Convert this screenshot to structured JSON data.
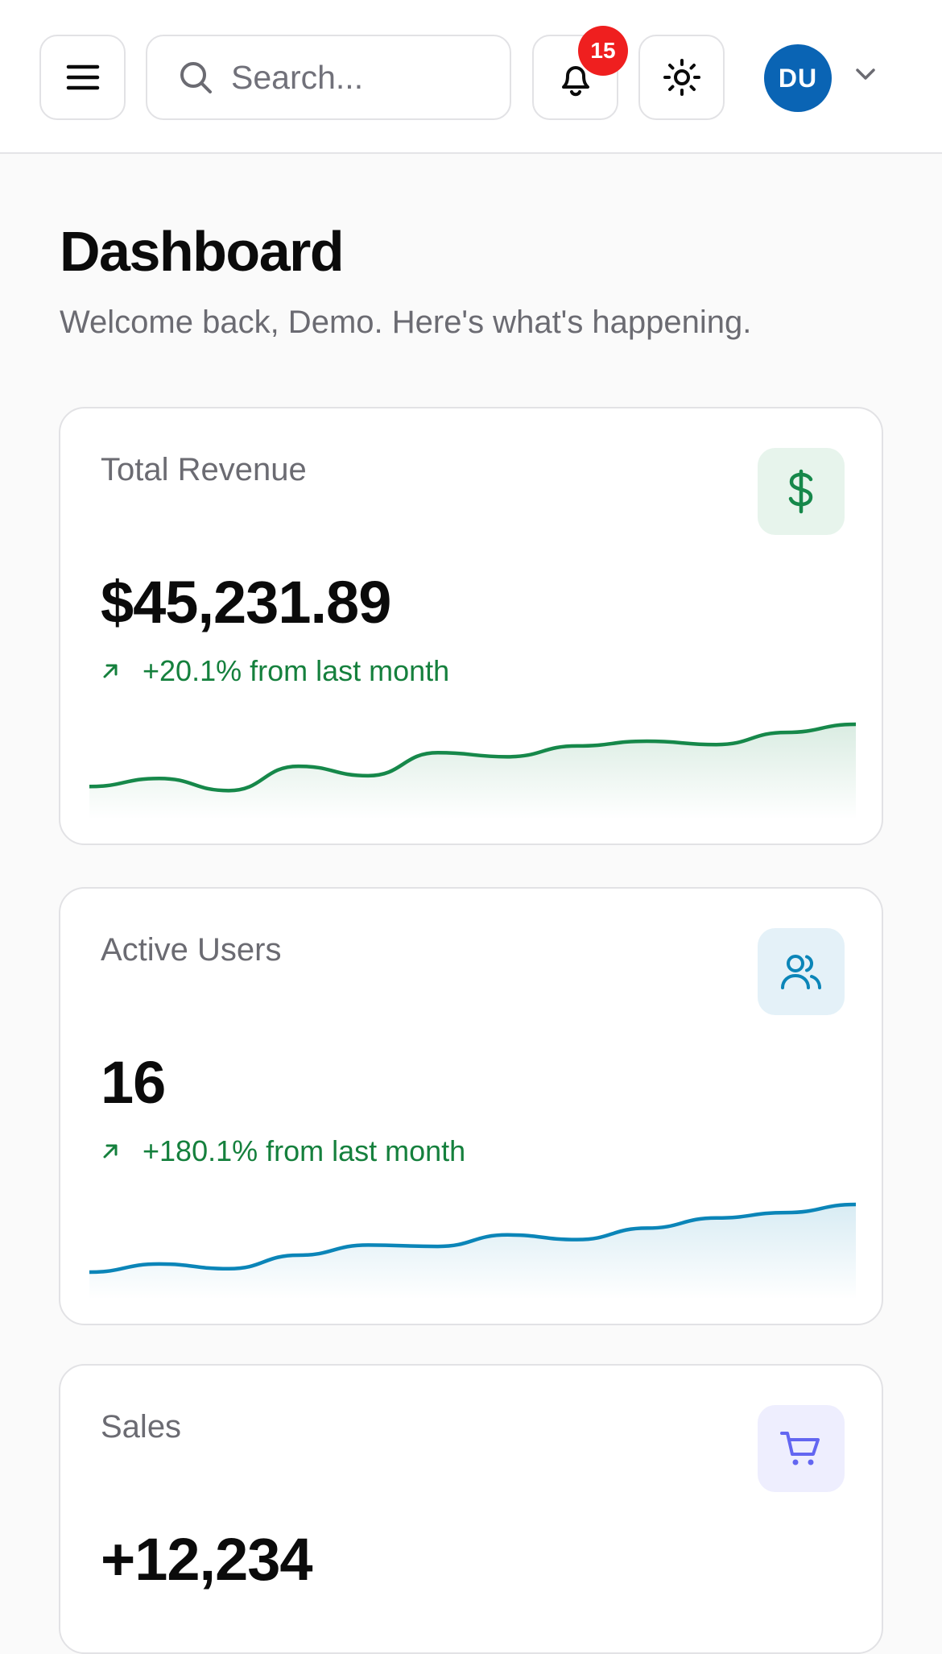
{
  "header": {
    "search_placeholder": "Search...",
    "notification_count": "15",
    "avatar_initials": "DU",
    "menu_icon": "menu-icon",
    "search_icon": "search-icon",
    "bell_icon": "bell-icon",
    "theme_icon": "sun-icon",
    "caret_icon": "chevron-down-icon"
  },
  "page": {
    "title": "Dashboard",
    "subtitle": "Welcome back, Demo. Here's what's happening."
  },
  "cards": [
    {
      "label": "Total Revenue",
      "value": "$45,231.89",
      "trend": "+20.1% from last month",
      "icon": "dollar-icon",
      "accent": "#16884a",
      "tile_bg": "#e7f4ec",
      "spark": [
        0.08,
        0.2,
        0.02,
        0.38,
        0.24,
        0.58,
        0.52,
        0.68,
        0.75,
        0.7,
        0.88,
        1.0
      ]
    },
    {
      "label": "Active Users",
      "value": "16",
      "trend": "+180.1% from last month",
      "icon": "users-icon",
      "accent": "#0b85b8",
      "tile_bg": "#e4f1f8",
      "spark": [
        0.0,
        0.12,
        0.05,
        0.25,
        0.4,
        0.38,
        0.55,
        0.48,
        0.65,
        0.8,
        0.88,
        1.0
      ]
    },
    {
      "label": "Sales",
      "value": "+12,234",
      "icon": "shopping-cart-icon",
      "accent": "#6366f1",
      "tile_bg": "#eeeefe"
    }
  ]
}
